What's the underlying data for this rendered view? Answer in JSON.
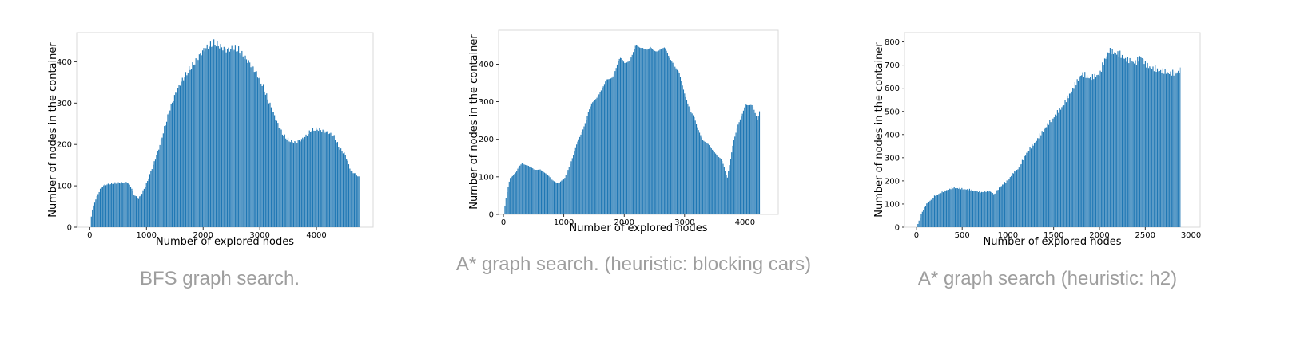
{
  "chart_data": [
    {
      "type": "bar",
      "caption": "BFS graph search.",
      "xlabel": "Number of explored nodes",
      "ylabel": "Number of nodes in the container",
      "xlim": [
        -230,
        5000
      ],
      "ylim": [
        0,
        470
      ],
      "xticks": [
        0,
        1000,
        2000,
        3000,
        4000
      ],
      "yticks": [
        0,
        100,
        200,
        300,
        400
      ],
      "color": "#1f77b4",
      "envelope": [
        [
          0,
          0
        ],
        [
          30,
          40
        ],
        [
          100,
          70
        ],
        [
          180,
          95
        ],
        [
          250,
          105
        ],
        [
          400,
          108
        ],
        [
          550,
          110
        ],
        [
          650,
          112
        ],
        [
          720,
          100
        ],
        [
          780,
          80
        ],
        [
          850,
          70
        ],
        [
          900,
          80
        ],
        [
          1000,
          110
        ],
        [
          1100,
          150
        ],
        [
          1200,
          190
        ],
        [
          1300,
          240
        ],
        [
          1400,
          290
        ],
        [
          1500,
          330
        ],
        [
          1600,
          360
        ],
        [
          1700,
          380
        ],
        [
          1800,
          400
        ],
        [
          1900,
          420
        ],
        [
          2000,
          440
        ],
        [
          2100,
          450
        ],
        [
          2200,
          455
        ],
        [
          2300,
          448
        ],
        [
          2400,
          440
        ],
        [
          2500,
          443
        ],
        [
          2600,
          440
        ],
        [
          2700,
          425
        ],
        [
          2800,
          410
        ],
        [
          2900,
          390
        ],
        [
          3000,
          365
        ],
        [
          3100,
          330
        ],
        [
          3200,
          295
        ],
        [
          3300,
          260
        ],
        [
          3400,
          230
        ],
        [
          3500,
          215
        ],
        [
          3600,
          210
        ],
        [
          3700,
          215
        ],
        [
          3800,
          225
        ],
        [
          3900,
          240
        ],
        [
          4000,
          243
        ],
        [
          4100,
          240
        ],
        [
          4200,
          235
        ],
        [
          4300,
          225
        ],
        [
          4400,
          195
        ],
        [
          4500,
          180
        ],
        [
          4600,
          140
        ],
        [
          4700,
          130
        ],
        [
          4760,
          120
        ]
      ],
      "xmax": 4760
    },
    {
      "type": "bar",
      "caption": "A* graph search. (heuristic: blocking cars)",
      "xlabel": "Number of explored nodes",
      "ylabel": "Number of nodes in the container",
      "xlim": [
        -80,
        4550
      ],
      "ylim": [
        0,
        490
      ],
      "xticks": [
        0,
        1000,
        2000,
        3000,
        4000
      ],
      "yticks": [
        0,
        100,
        200,
        300,
        400
      ],
      "color": "#1f77b4",
      "envelope": [
        [
          0,
          0
        ],
        [
          40,
          50
        ],
        [
          100,
          100
        ],
        [
          200,
          115
        ],
        [
          300,
          140
        ],
        [
          400,
          135
        ],
        [
          500,
          120
        ],
        [
          600,
          125
        ],
        [
          700,
          110
        ],
        [
          800,
          95
        ],
        [
          900,
          85
        ],
        [
          1000,
          95
        ],
        [
          1100,
          140
        ],
        [
          1200,
          185
        ],
        [
          1300,
          230
        ],
        [
          1400,
          280
        ],
        [
          1500,
          310
        ],
        [
          1600,
          340
        ],
        [
          1700,
          360
        ],
        [
          1800,
          380
        ],
        [
          1900,
          420
        ],
        [
          2000,
          415
        ],
        [
          2100,
          430
        ],
        [
          2200,
          455
        ],
        [
          2300,
          462
        ],
        [
          2400,
          445
        ],
        [
          2500,
          450
        ],
        [
          2600,
          455
        ],
        [
          2700,
          440
        ],
        [
          2800,
          420
        ],
        [
          2900,
          380
        ],
        [
          3000,
          330
        ],
        [
          3100,
          280
        ],
        [
          3200,
          240
        ],
        [
          3300,
          205
        ],
        [
          3400,
          185
        ],
        [
          3500,
          170
        ],
        [
          3600,
          150
        ],
        [
          3700,
          100
        ],
        [
          3800,
          200
        ],
        [
          3900,
          250
        ],
        [
          4000,
          305
        ],
        [
          4100,
          295
        ],
        [
          4150,
          280
        ],
        [
          4200,
          260
        ],
        [
          4250,
          300
        ]
      ],
      "xmax": 4250
    },
    {
      "type": "bar",
      "caption": "A* graph search (heuristic: h2)",
      "xlabel": "Number of explored nodes",
      "ylabel": "Number of nodes in the container",
      "xlim": [
        -130,
        3100
      ],
      "ylim": [
        0,
        840
      ],
      "xticks": [
        0,
        500,
        1000,
        1500,
        2000,
        2500,
        3000
      ],
      "yticks": [
        0,
        100,
        200,
        300,
        400,
        500,
        600,
        700,
        800
      ],
      "color": "#1f77b4",
      "envelope": [
        [
          0,
          0
        ],
        [
          50,
          60
        ],
        [
          100,
          100
        ],
        [
          200,
          140
        ],
        [
          300,
          160
        ],
        [
          400,
          175
        ],
        [
          500,
          170
        ],
        [
          600,
          165
        ],
        [
          700,
          155
        ],
        [
          800,
          160
        ],
        [
          850,
          145
        ],
        [
          900,
          175
        ],
        [
          1000,
          210
        ],
        [
          1050,
          240
        ],
        [
          1100,
          255
        ],
        [
          1150,
          290
        ],
        [
          1200,
          330
        ],
        [
          1300,
          380
        ],
        [
          1400,
          440
        ],
        [
          1500,
          490
        ],
        [
          1600,
          540
        ],
        [
          1700,
          610
        ],
        [
          1800,
          680
        ],
        [
          1900,
          660
        ],
        [
          2000,
          680
        ],
        [
          2050,
          740
        ],
        [
          2100,
          780
        ],
        [
          2200,
          770
        ],
        [
          2300,
          740
        ],
        [
          2400,
          730
        ],
        [
          2450,
          760
        ],
        [
          2500,
          720
        ],
        [
          2600,
          700
        ],
        [
          2700,
          690
        ],
        [
          2800,
          680
        ],
        [
          2880,
          695
        ]
      ],
      "xmax": 2880
    }
  ]
}
